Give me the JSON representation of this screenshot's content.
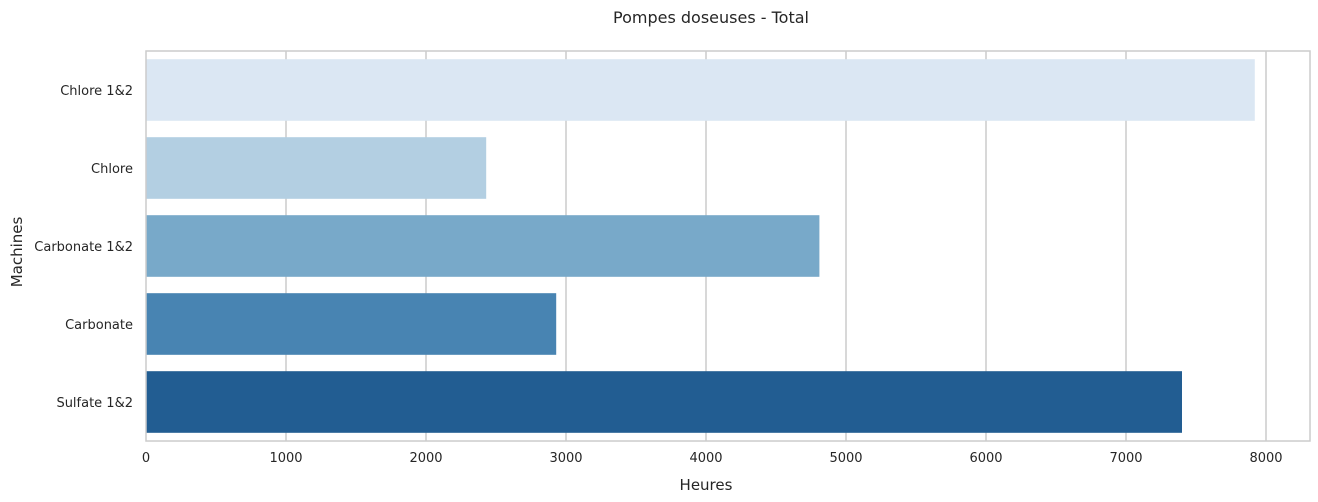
{
  "chart_data": {
    "type": "bar",
    "orientation": "horizontal",
    "title": "Pompes doseuses - Total",
    "xlabel": "Heures",
    "ylabel": "Machines",
    "categories": [
      "Chlore 1&2",
      "Chlore",
      "Carbonate 1&2",
      "Carbonate",
      "Sulfate 1&2"
    ],
    "values": [
      7920,
      2430,
      4810,
      2930,
      7400
    ],
    "colors": [
      "#dbe7f3",
      "#b3cfe2",
      "#78a9c9",
      "#4884b2",
      "#225d92"
    ],
    "xlim": [
      0,
      8300
    ],
    "xticks": [
      0,
      1000,
      2000,
      3000,
      4000,
      5000,
      6000,
      7000,
      8000
    ],
    "grid": "vertical",
    "legend": "none"
  }
}
